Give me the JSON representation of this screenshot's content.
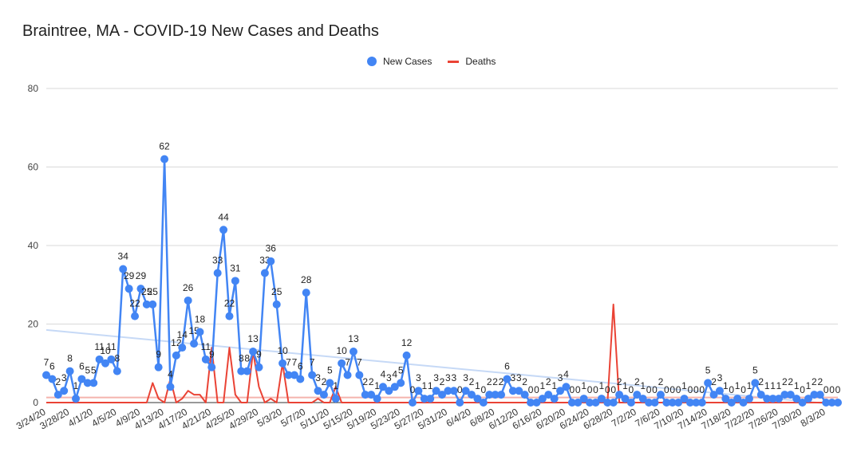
{
  "chart_data": {
    "type": "line",
    "title": "Braintree, MA - COVID-19 New Cases and Deaths",
    "xlabel": "",
    "ylabel": "",
    "ylim": [
      0,
      80
    ],
    "yticks": [
      0,
      20,
      40,
      60,
      80
    ],
    "xtick_labels": [
      "3/24/20",
      "3/28/20",
      "4/1/20",
      "4/5/20",
      "4/9/20",
      "4/13/20",
      "4/17/20",
      "4/21/20",
      "4/25/20",
      "4/29/20",
      "5/3/20",
      "5/7/20",
      "5/11/20",
      "5/15/20",
      "5/19/20",
      "5/23/20",
      "5/27/20",
      "5/31/20",
      "6/4/20",
      "6/8/20",
      "6/12/20",
      "6/16/20",
      "6/20/20",
      "6/24/20",
      "6/28/20",
      "7/2/20",
      "7/6/20",
      "7/10/20",
      "7/14/20",
      "7/18/20",
      "7/22/20",
      "7/26/20",
      "7/30/20",
      "8/3/20"
    ],
    "legend": [
      "New Cases",
      "Deaths"
    ],
    "colors": {
      "cases": "#4285f4",
      "deaths": "#ea4335",
      "trend_cases": "#c6d9f6",
      "trend_deaths": "#f4b3ad"
    },
    "trend_cases": [
      18.5,
      -0.5
    ],
    "trend_deaths": [
      1.3,
      1.3
    ],
    "series": [
      {
        "name": "New Cases",
        "values": [
          7,
          6,
          2,
          3,
          8,
          1,
          6,
          5,
          5,
          11,
          10,
          11,
          8,
          34,
          29,
          22,
          29,
          25,
          25,
          9,
          62,
          4,
          12,
          14,
          26,
          15,
          18,
          11,
          9,
          33,
          44,
          22,
          31,
          8,
          8,
          13,
          9,
          33,
          36,
          25,
          10,
          7,
          7,
          6,
          28,
          7,
          3,
          2,
          5,
          1,
          10,
          7,
          13,
          7,
          2,
          2,
          1,
          4,
          3,
          4,
          5,
          12,
          0,
          3,
          1,
          1,
          3,
          2,
          3,
          3,
          0,
          3,
          2,
          1,
          0,
          2,
          2,
          2,
          6,
          3,
          3,
          2,
          0,
          0,
          1,
          2,
          1,
          3,
          4,
          0,
          0,
          1,
          0,
          0,
          1,
          0,
          0,
          2,
          1,
          0,
          2,
          1,
          0,
          0,
          2,
          0,
          0,
          0,
          1,
          0,
          0,
          0,
          5,
          2,
          3,
          1,
          0,
          1,
          0,
          1,
          5,
          2,
          1,
          1,
          1,
          2,
          2,
          1,
          0,
          1,
          2,
          2,
          0,
          0,
          0
        ]
      },
      {
        "name": "Deaths",
        "values": [
          0,
          0,
          0,
          0,
          0,
          0,
          0,
          0,
          0,
          0,
          0,
          0,
          0,
          0,
          0,
          0,
          0,
          0,
          5,
          1,
          0,
          6,
          0,
          1,
          3,
          2,
          2,
          0,
          14,
          0,
          0,
          14,
          2,
          0,
          0,
          13,
          4,
          0,
          1,
          0,
          10,
          0,
          0,
          0,
          0,
          0,
          1,
          0,
          0,
          4,
          0,
          0,
          0,
          0,
          0,
          0,
          0,
          0,
          0,
          0,
          0,
          0,
          0,
          0,
          0,
          0,
          0,
          0,
          0,
          0,
          0,
          0,
          0,
          0,
          0,
          0,
          0,
          0,
          0,
          0,
          0,
          0,
          0,
          0,
          0,
          0,
          0,
          0,
          0,
          0,
          0,
          0,
          0,
          0,
          0,
          0,
          25,
          0,
          0,
          0,
          0,
          0,
          0,
          0,
          0,
          0,
          0,
          0,
          0,
          0,
          0,
          0,
          0,
          0,
          0,
          0,
          0,
          0,
          0,
          0,
          0,
          0,
          0,
          0,
          0,
          0,
          0,
          0,
          0,
          0,
          0,
          0,
          0,
          0,
          0
        ]
      }
    ]
  }
}
